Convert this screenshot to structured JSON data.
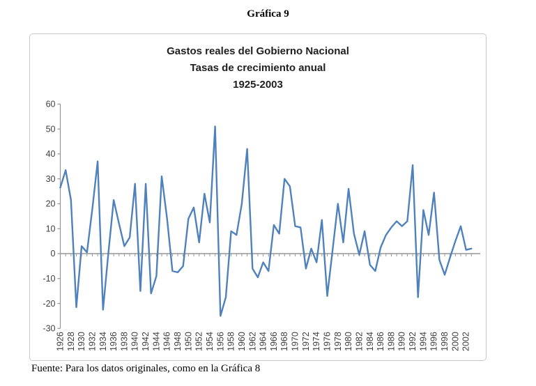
{
  "page": {
    "title": "Gráfica 9",
    "footer": "Fuente: Para los datos originales, como en la Gráfica 8"
  },
  "chart": {
    "title_lines": [
      "Gastos reales del Gobierno Nacional",
      "Tasas de crecimiento anual",
      "1925-2003"
    ]
  },
  "chart_data": {
    "type": "line",
    "title": "Gastos reales del Gobierno Nacional - Tasas de crecimiento anual - 1925-2003",
    "xlabel": "",
    "ylabel": "",
    "x": [
      1926,
      1927,
      1928,
      1929,
      1930,
      1931,
      1932,
      1933,
      1934,
      1935,
      1936,
      1937,
      1938,
      1939,
      1940,
      1941,
      1942,
      1943,
      1944,
      1945,
      1946,
      1947,
      1948,
      1949,
      1950,
      1951,
      1952,
      1953,
      1954,
      1955,
      1956,
      1957,
      1958,
      1959,
      1960,
      1961,
      1962,
      1963,
      1964,
      1965,
      1966,
      1967,
      1968,
      1969,
      1970,
      1971,
      1972,
      1973,
      1974,
      1975,
      1976,
      1977,
      1978,
      1979,
      1980,
      1981,
      1982,
      1983,
      1984,
      1985,
      1986,
      1987,
      1988,
      1989,
      1990,
      1991,
      1992,
      1993,
      1994,
      1995,
      1996,
      1997,
      1998,
      1999,
      2000,
      2001,
      2002,
      2003
    ],
    "values": [
      26.5,
      33.5,
      21.5,
      -21.5,
      3,
      0.5,
      18,
      37,
      -22.5,
      0,
      21.5,
      12,
      3,
      6.5,
      28,
      -15,
      28,
      -16,
      -9,
      31,
      14,
      -7,
      -7.5,
      -5,
      14,
      18.5,
      4.5,
      24,
      12.5,
      51,
      -25,
      -17.5,
      9,
      7.5,
      20,
      42,
      -6,
      -9.5,
      -3.5,
      -7,
      11.5,
      8,
      30,
      27,
      11,
      10.5,
      -6,
      2,
      -3.5,
      13.5,
      -17,
      1.5,
      20,
      4.5,
      26,
      8,
      -0.5,
      9,
      -4.5,
      -7,
      2.5,
      7.5,
      10.5,
      13,
      11,
      13,
      35.5,
      -17.5,
      17.5,
      7.5,
      24.5,
      -2.5,
      -8.5,
      -1.5,
      5,
      11,
      1.5,
      2
    ],
    "x_tick_labels": [
      "1926",
      "1928",
      "1930",
      "1932",
      "1934",
      "1936",
      "1938",
      "1940",
      "1942",
      "1944",
      "1946",
      "1948",
      "1950",
      "1952",
      "1954",
      "1956",
      "1958",
      "1960",
      "1962",
      "1964",
      "1966",
      "1968",
      "1970",
      "1972",
      "1974",
      "1976",
      "1978",
      "1980",
      "1982",
      "1984",
      "1986",
      "1988",
      "1990",
      "1992",
      "1994",
      "1996",
      "1998",
      "2000",
      "2002"
    ],
    "x_tick_interval": 2,
    "y_ticks": [
      60,
      50,
      40,
      30,
      20,
      10,
      0,
      -10,
      -20,
      -30
    ],
    "ylim": [
      -30,
      60
    ],
    "grid": "off",
    "legend": "none",
    "series_color": "#4F81BD",
    "axis_color": "#969696",
    "label_color": "#3f3f3f"
  }
}
